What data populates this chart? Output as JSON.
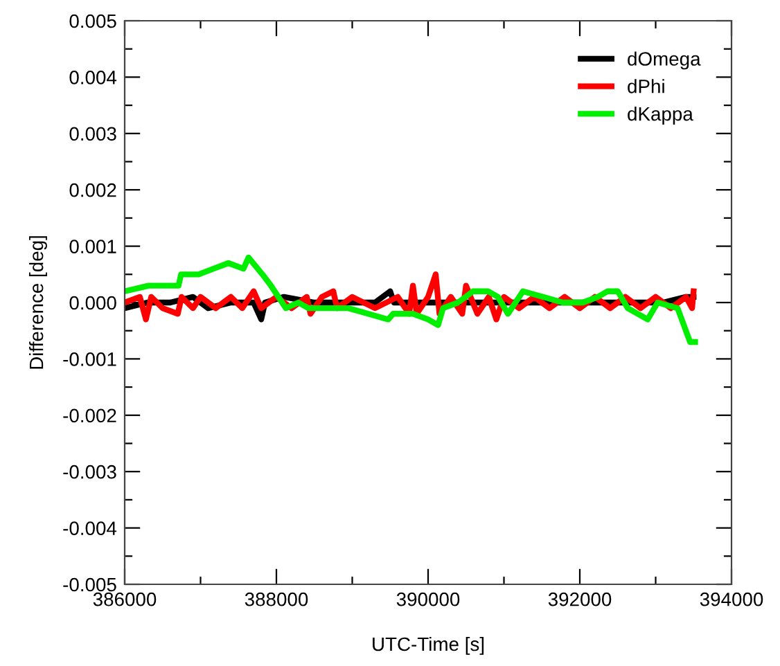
{
  "chart_data": {
    "type": "line",
    "xlabel": "UTC-Time [s]",
    "ylabel": "Difference [deg]",
    "xlim": [
      386000,
      394000
    ],
    "xticks": [
      386000,
      388000,
      390000,
      392000,
      394000
    ],
    "ylim": [
      -0.005,
      0.005
    ],
    "yticks": [
      {
        "value": -0.005,
        "label": "-0.005"
      },
      {
        "value": -0.004,
        "label": "-0.004"
      },
      {
        "value": -0.003,
        "label": "-0.003"
      },
      {
        "value": -0.002,
        "label": "-0.002"
      },
      {
        "value": -0.001,
        "label": "-0.001"
      },
      {
        "value": 0,
        "label": "0.000"
      },
      {
        "value": 0.001,
        "label": "0.001"
      },
      {
        "value": 0.002,
        "label": "0.002"
      },
      {
        "value": 0.003,
        "label": "0.003"
      },
      {
        "value": 0.004,
        "label": "0.004"
      },
      {
        "value": 0.005,
        "label": "0.005"
      }
    ],
    "grid": false,
    "legend": "top right",
    "line_style": "solid",
    "marker": "none",
    "series": [
      {
        "name": "dOmega",
        "color": "#000000",
        "x": [
          386000,
          386300,
          386600,
          386900,
          387100,
          387400,
          387700,
          387800,
          387850,
          388100,
          388500,
          388900,
          389300,
          389500,
          389550,
          389900,
          390300,
          390700,
          391100,
          391500,
          391900,
          392300,
          392700,
          393100,
          393400,
          393500
        ],
        "values": [
          -0.0001,
          0.0,
          0.0,
          0.0001,
          -0.0001,
          0.0,
          0.0,
          -0.0003,
          0.0,
          0.0001,
          0.0,
          0.0,
          0.0,
          0.0002,
          0.0,
          0.0,
          0.0,
          0.0,
          0.0,
          0.0,
          0.0,
          0.0,
          0.0,
          0.0,
          0.0001,
          0.0001
        ]
      },
      {
        "name": "dPhi",
        "color": "#ff0000",
        "x": [
          386000,
          386200,
          386280,
          386350,
          386500,
          386700,
          386750,
          386900,
          387000,
          387200,
          387400,
          387550,
          387700,
          387800,
          388000,
          388200,
          388400,
          388450,
          388600,
          388750,
          388800,
          389000,
          389300,
          389600,
          389750,
          389800,
          389850,
          390000,
          390100,
          390150,
          390300,
          390450,
          390500,
          390650,
          390800,
          390900,
          391000,
          391200,
          391400,
          391600,
          391800,
          392000,
          392200,
          392400,
          392600,
          392800,
          393000,
          393200,
          393400,
          393480,
          393500
        ],
        "values": [
          0.0,
          0.0001,
          -0.0003,
          0.0001,
          -0.0001,
          -0.0002,
          0.0001,
          -0.0001,
          0.0001,
          -0.0001,
          0.0001,
          -0.0001,
          0.0002,
          -0.0001,
          0.0001,
          -0.0001,
          0.0001,
          -0.0002,
          0.0001,
          0.0002,
          -0.0001,
          0.0001,
          -0.0001,
          0.0001,
          -0.0002,
          0.0003,
          -0.0002,
          0.0001,
          0.0005,
          -0.0002,
          0.0001,
          -0.0002,
          0.0003,
          -0.0002,
          0.0001,
          -0.0003,
          0.0001,
          -0.0001,
          0.0001,
          -0.0001,
          0.0001,
          -0.0001,
          0.0001,
          -0.0001,
          0.0001,
          -0.0001,
          0.0001,
          -0.0001,
          0.0001,
          -0.0001,
          0.0002
        ]
      },
      {
        "name": "dKappa",
        "color": "#00ee00",
        "x": [
          386000,
          386316,
          386500,
          386710,
          386743,
          386974,
          387171,
          387368,
          387566,
          387632,
          387816,
          387928,
          388125,
          388290,
          388421,
          388684,
          388947,
          389211,
          389474,
          389539,
          389803,
          390000,
          390132,
          390197,
          390395,
          390592,
          390789,
          390921,
          391053,
          391250,
          391513,
          391776,
          392039,
          392237,
          392368,
          392500,
          392632,
          392895,
          393026,
          393289,
          393454,
          393520
        ],
        "values": [
          0.0002,
          0.0003,
          0.0003,
          0.0003,
          0.0005,
          0.0005,
          0.0006,
          0.0007,
          0.0006,
          0.0008,
          0.0005,
          0.0003,
          -0.0001,
          0.0,
          -0.0001,
          -0.0001,
          -0.0001,
          -0.0002,
          -0.0003,
          -0.0002,
          -0.0002,
          -0.0003,
          -0.0004,
          -0.0001,
          0.0,
          0.0002,
          0.0002,
          0.0001,
          -0.0002,
          0.0002,
          0.0001,
          0.0,
          0.0,
          0.0001,
          0.0002,
          0.0002,
          -0.0001,
          -0.0003,
          0.0,
          -0.0001,
          -0.0007,
          -0.0007
        ]
      }
    ]
  }
}
